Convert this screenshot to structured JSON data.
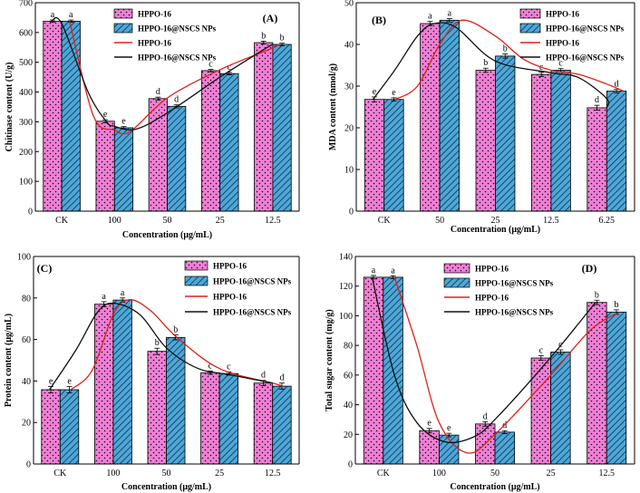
{
  "colors": {
    "pink": "#f07fd6",
    "blue": "#4ea7d6",
    "red_curve": "#e0201b",
    "black_curve": "#111111"
  },
  "chart_data": [
    {
      "type": "bar",
      "panel": "(A)",
      "ylabel": "Chitinase content (U/g)",
      "xlabel": "Concentration (μg/mL)",
      "categories": [
        "CK",
        "100",
        "50",
        "25",
        "12.5"
      ],
      "ylim": [
        0,
        700
      ],
      "yticks": [
        0,
        100,
        200,
        300,
        400,
        500,
        600,
        700
      ],
      "series": [
        {
          "name": "HPPO-16",
          "values": [
            638,
            302,
            378,
            472,
            566
          ],
          "errors": [
            4,
            5,
            5,
            4,
            5
          ],
          "labels": [
            "a",
            "e",
            "d",
            "c",
            "b"
          ]
        },
        {
          "name": "HPPO-16@NSCS NPs",
          "values": [
            638,
            280,
            352,
            462,
            560
          ],
          "errors": [
            4,
            4,
            5,
            4,
            4
          ],
          "labels": [
            "a",
            "e",
            "d",
            "c",
            "b"
          ]
        }
      ],
      "curves": [
        {
          "name": "HPPO-16",
          "points": [
            [
              0.15,
              638
            ],
            [
              0.6,
              320
            ],
            [
              1.0,
              272
            ],
            [
              1.3,
              268
            ],
            [
              2.0,
              380
            ],
            [
              3.0,
              475
            ],
            [
              4.0,
              548
            ],
            [
              4.1,
              560
            ]
          ]
        },
        {
          "name": "HPPO-16@NSCS NPs",
          "points": [
            [
              -0.2,
              638
            ],
            [
              0.0,
              630
            ],
            [
              0.5,
              400
            ],
            [
              0.85,
              300
            ],
            [
              1.0,
              285
            ],
            [
              1.4,
              275
            ],
            [
              2.0,
              330
            ],
            [
              3.0,
              450
            ],
            [
              3.85,
              545
            ],
            [
              4.0,
              560
            ]
          ]
        }
      ],
      "legend": [
        "HPPO-16",
        "HPPO-16@NSCS NPs",
        "HPPO-16",
        "HPPO-16@NSCS NPs"
      ]
    },
    {
      "type": "bar",
      "panel": "(B)",
      "ylabel": "MDA content (nmol/g)",
      "xlabel": "Concentration (μg/mL)",
      "categories": [
        "CK",
        "50",
        "25",
        "12.5",
        "6.25"
      ],
      "ylim": [
        0,
        50
      ],
      "yticks": [
        0,
        10,
        20,
        30,
        40,
        50
      ],
      "series": [
        {
          "name": "HPPO-16",
          "values": [
            26.8,
            45.0,
            33.8,
            32.8,
            24.8
          ],
          "errors": [
            0.6,
            0.5,
            0.5,
            0.5,
            0.6
          ],
          "labels": [
            "e",
            "a",
            "b",
            "c",
            "d"
          ]
        },
        {
          "name": "HPPO-16@NSCS NPs",
          "values": [
            26.8,
            45.8,
            37.2,
            33.8,
            28.8
          ],
          "errors": [
            0.4,
            0.4,
            0.5,
            0.4,
            0.4
          ],
          "labels": [
            "e",
            "a",
            "b",
            "c",
            "d"
          ]
        }
      ],
      "curves": [
        {
          "name": "HPPO-16",
          "points": [
            [
              0.2,
              26.8
            ],
            [
              0.6,
              30
            ],
            [
              1.0,
              40
            ],
            [
              1.4,
              45.8
            ],
            [
              2.0,
              42
            ],
            [
              2.5,
              36.5
            ],
            [
              3.0,
              33.8
            ],
            [
              3.5,
              32.8
            ],
            [
              4.0,
              30.5
            ],
            [
              4.3,
              28.8
            ]
          ]
        },
        {
          "name": "HPPO-16@NSCS NPs",
          "points": [
            [
              -0.2,
              26.8
            ],
            [
              0.2,
              34
            ],
            [
              0.6,
              42
            ],
            [
              0.9,
              45.0
            ],
            [
              1.3,
              44
            ],
            [
              2.0,
              36
            ],
            [
              3.0,
              33.2
            ],
            [
              3.5,
              32
            ],
            [
              4.0,
              27
            ],
            [
              4.0,
              24.8
            ]
          ]
        }
      ],
      "legend": [
        "HPPO-16",
        "HPPO-16@NSCS NPs",
        "HPPO-16",
        "HPPO-16@NSCS NPs"
      ]
    },
    {
      "type": "bar",
      "panel": "(C)",
      "ylabel": "Protein content (μg/mL)",
      "xlabel": "Concentration (μg/mL)",
      "categories": [
        "CK",
        "100",
        "50",
        "25",
        "12.5"
      ],
      "ylim": [
        0,
        100
      ],
      "yticks": [
        0,
        20,
        40,
        60,
        80,
        100
      ],
      "series": [
        {
          "name": "HPPO-16",
          "values": [
            35.8,
            77.0,
            54.3,
            44.0,
            39.0
          ],
          "errors": [
            1.5,
            1.2,
            1.5,
            0.8,
            1.3
          ],
          "labels": [
            "e",
            "a",
            "b",
            "c",
            "d"
          ]
        },
        {
          "name": "HPPO-16@NSCS NPs",
          "values": [
            35.8,
            79.0,
            61.0,
            43.6,
            37.5
          ],
          "errors": [
            1.5,
            1.0,
            1.2,
            0.8,
            1.5
          ],
          "labels": [
            "e",
            "a",
            "b",
            "c",
            "d"
          ]
        }
      ],
      "curves": [
        {
          "name": "HPPO-16",
          "points": [
            [
              0.2,
              35.8
            ],
            [
              0.6,
              45
            ],
            [
              1.0,
              72
            ],
            [
              1.3,
              79.2
            ],
            [
              1.7,
              74
            ],
            [
              2.2,
              61
            ],
            [
              3.0,
              46
            ],
            [
              4.0,
              39
            ],
            [
              4.2,
              37.5
            ]
          ]
        },
        {
          "name": "HPPO-16@NSCS NPs",
          "points": [
            [
              -0.2,
              35.8
            ],
            [
              0.3,
              55
            ],
            [
              0.7,
              73
            ],
            [
              1.0,
              77.5
            ],
            [
              1.5,
              72
            ],
            [
              2.0,
              56
            ],
            [
              2.6,
              46
            ],
            [
              3.2,
              43
            ],
            [
              4.0,
              39
            ]
          ]
        }
      ],
      "legend": [
        "HPPO-16",
        "HPPO-16@NSCS NPs",
        "HPPO-16",
        "HPPO-16@NSCS NPs"
      ]
    },
    {
      "type": "bar",
      "panel": "(D)",
      "ylabel": "Total sugar content (mg/g)",
      "xlabel": "Concentration (μg/mL)",
      "categories": [
        "CK",
        "100",
        "50",
        "25",
        "12.5"
      ],
      "ylim": [
        0,
        140
      ],
      "yticks": [
        0,
        20,
        40,
        60,
        80,
        100,
        120,
        140
      ],
      "series": [
        {
          "name": "HPPO-16",
          "values": [
            126,
            22.5,
            27.0,
            71.5,
            109.0
          ],
          "errors": [
            1.2,
            1.5,
            1.5,
            1.5,
            1.5
          ],
          "labels": [
            "a",
            "e",
            "d",
            "c",
            "b"
          ]
        },
        {
          "name": "HPPO-16@NSCS NPs",
          "values": [
            126,
            19.5,
            21.5,
            75.5,
            102.5
          ],
          "errors": [
            1.0,
            1.2,
            1.0,
            1.5,
            1.5
          ],
          "labels": [
            "a",
            "e",
            "d",
            "c",
            "b"
          ]
        }
      ],
      "curves": [
        {
          "name": "HPPO-16",
          "points": [
            [
              0.2,
              126
            ],
            [
              0.6,
              80
            ],
            [
              1.0,
              28
            ],
            [
              1.5,
              7.5
            ],
            [
              2.0,
              20
            ],
            [
              3.0,
              60
            ],
            [
              3.7,
              90
            ],
            [
              4.2,
              102
            ]
          ]
        },
        {
          "name": "HPPO-16@NSCS NPs",
          "points": [
            [
              -0.2,
              126
            ],
            [
              0.2,
              60
            ],
            [
              0.6,
              28
            ],
            [
              1.1,
              15
            ],
            [
              1.6,
              18
            ],
            [
              2.0,
              30
            ],
            [
              3.0,
              72
            ],
            [
              3.8,
              109
            ]
          ]
        }
      ],
      "legend": [
        "HPPO-16",
        "HPPO-16@NSCS NPs",
        "HPPO-16",
        "HPPO-16@NSCS NPs"
      ]
    }
  ]
}
